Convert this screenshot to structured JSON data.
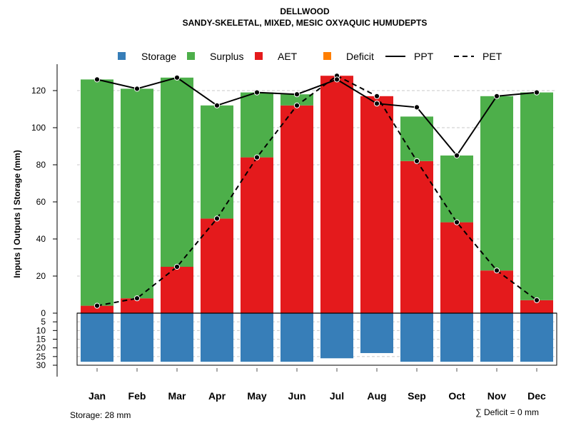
{
  "chart_data": {
    "type": "bar",
    "title": "DELLWOOD",
    "subtitle": "SANDY-SKELETAL, MIXED, MESIC OXYAQUIC HUMUDEPTS",
    "ylabel_parts": [
      "Inputs",
      "|",
      "Outputs",
      "|",
      "Storage",
      "(mm)"
    ],
    "ylabel": "Inputs | Outputs | Storage    (mm)",
    "categories": [
      "Jan",
      "Feb",
      "Mar",
      "Apr",
      "May",
      "Jun",
      "Jul",
      "Aug",
      "Sep",
      "Oct",
      "Nov",
      "Dec"
    ],
    "upper_axis": {
      "ylim": [
        0,
        130
      ],
      "ticks": [
        0,
        20,
        40,
        60,
        80,
        100,
        120
      ]
    },
    "storage_axis": {
      "ylim": [
        0,
        30
      ],
      "ticks": [
        5,
        10,
        15,
        20,
        25,
        30
      ]
    },
    "series": [
      {
        "name": "Storage",
        "color": "#377EB8",
        "values": [
          28,
          28,
          28,
          28,
          28,
          28,
          26,
          23,
          28,
          28,
          28,
          28
        ]
      },
      {
        "name": "Surplus",
        "color": "#4DAF4A",
        "values": [
          122,
          113,
          102,
          61,
          35,
          6,
          0,
          0,
          24,
          36,
          94,
          112
        ]
      },
      {
        "name": "AET",
        "color": "#E41A1C",
        "values": [
          4,
          8,
          25,
          51,
          84,
          112,
          128,
          117,
          82,
          49,
          23,
          7
        ]
      },
      {
        "name": "Deficit",
        "color": "#FF7F00",
        "values": [
          0,
          0,
          0,
          0,
          0,
          0,
          0,
          0,
          0,
          0,
          0,
          0
        ]
      },
      {
        "name": "PPT",
        "style": "solid",
        "values": [
          126,
          121,
          127,
          112,
          119,
          118,
          126,
          113,
          111,
          85,
          117,
          119
        ]
      },
      {
        "name": "PET",
        "style": "dashed",
        "values": [
          4,
          8,
          25,
          51,
          84,
          112,
          128,
          117,
          82,
          49,
          23,
          7
        ]
      }
    ],
    "legend": [
      "Storage",
      "Surplus",
      "AET",
      "Deficit",
      "PPT",
      "PET"
    ],
    "legend_position": "top",
    "grid": true,
    "storage_note": "Storage: 28 mm",
    "deficit_note": "∑ Deficit = 0 mm"
  }
}
